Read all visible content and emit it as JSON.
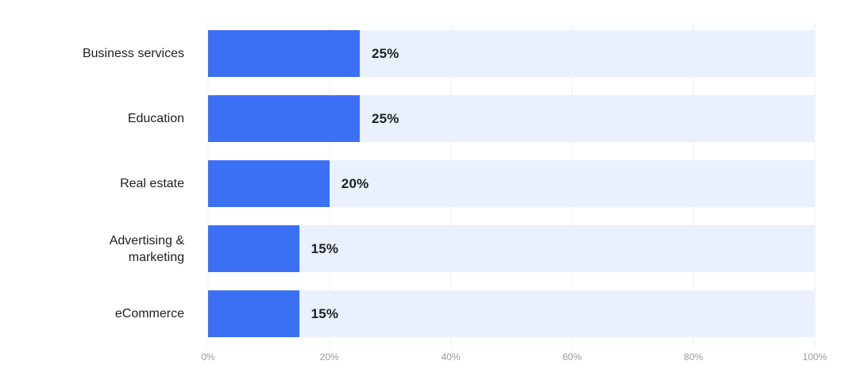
{
  "colors": {
    "background": "#ffffff",
    "bar": "#3b70f5",
    "track": "#eaf0fc",
    "gridline": "#ececec",
    "category_label": "#1c1e22",
    "value_label": "#1d2025",
    "axis_label": "#9a9a9a"
  },
  "chart_data": {
    "type": "bar",
    "orientation": "horizontal",
    "title": "",
    "xlabel": "",
    "ylabel": "",
    "categories": [
      "Business services",
      "Education",
      "Real estate",
      "Advertising & marketing",
      "eCommerce"
    ],
    "values": [
      25,
      25,
      20,
      15,
      15
    ],
    "value_labels": [
      "25%",
      "25%",
      "20%",
      "15%",
      "15%"
    ],
    "x_ticks": [
      {
        "label": "0%",
        "value": 0
      },
      {
        "label": "20%",
        "value": 20
      },
      {
        "label": "40%",
        "value": 40
      },
      {
        "label": "60%",
        "value": 60
      },
      {
        "label": "80%",
        "value": 80
      },
      {
        "label": "100%",
        "value": 100
      }
    ],
    "xlim": [
      0,
      100
    ],
    "grid": "vertical",
    "legend": "none",
    "track_full_width": true
  }
}
